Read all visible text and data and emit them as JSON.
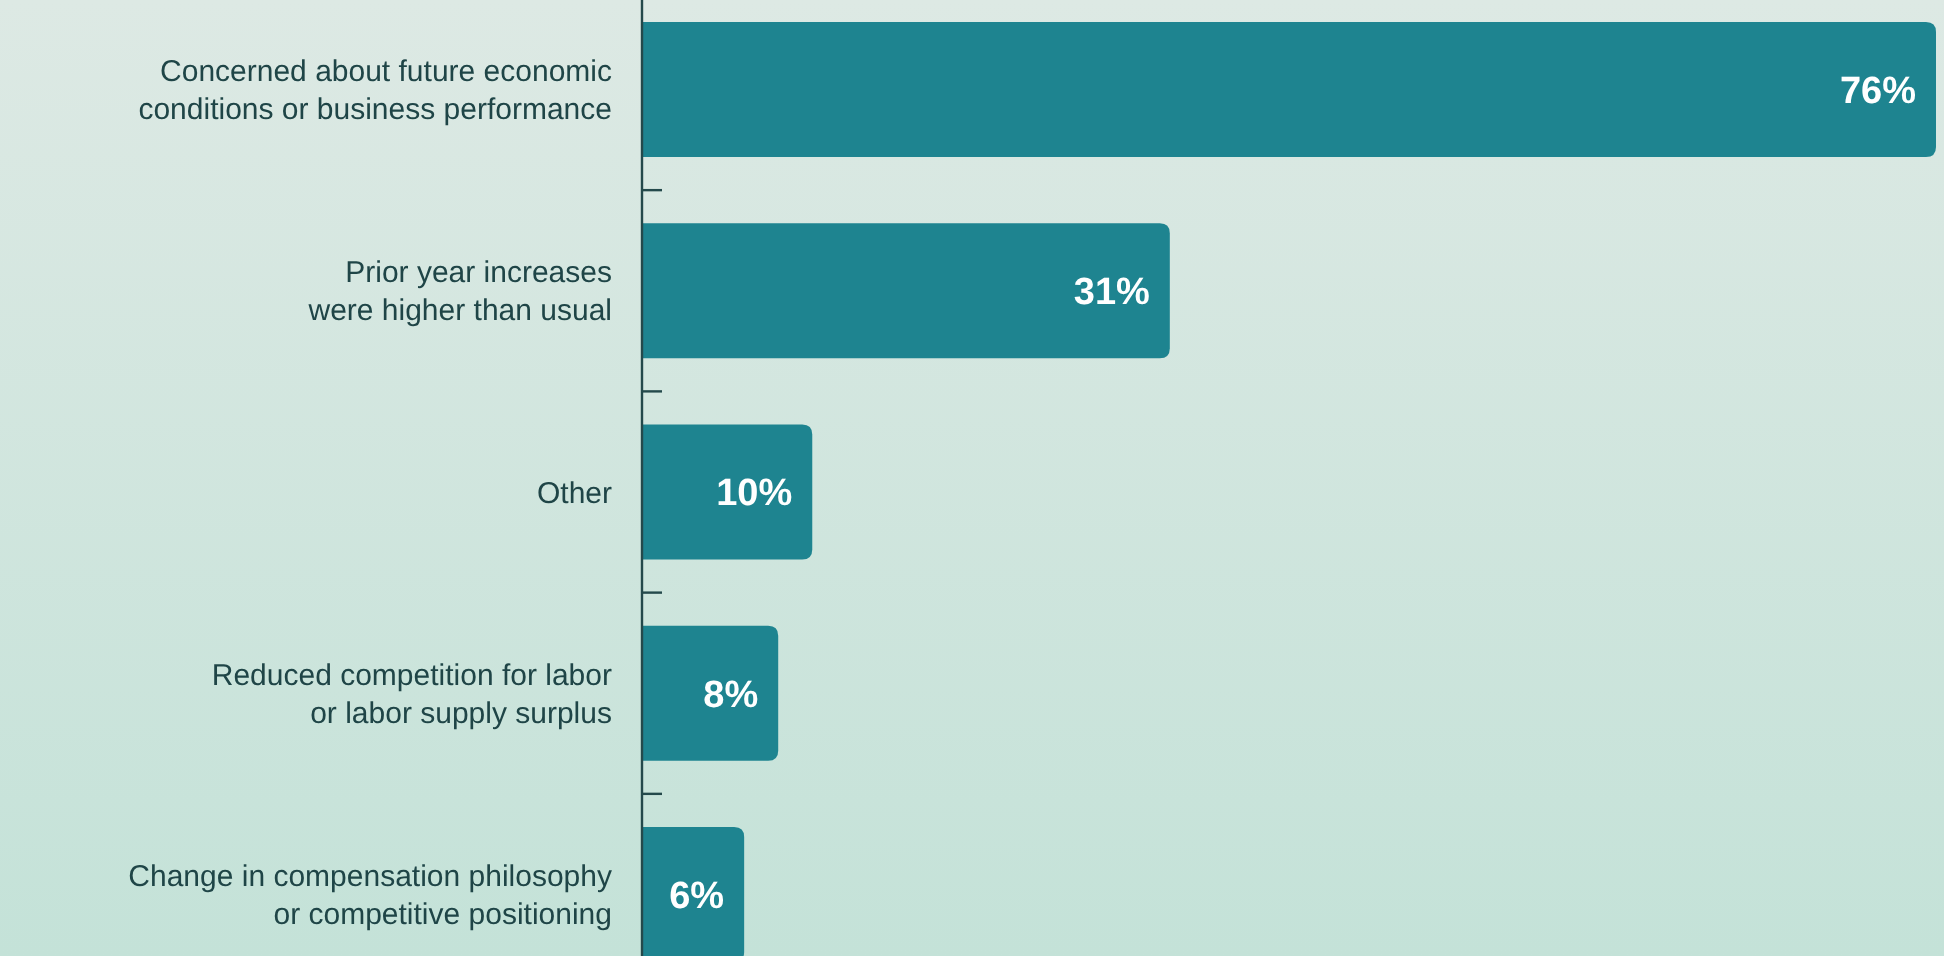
{
  "chart_data": {
    "type": "bar",
    "orientation": "horizontal",
    "categories": [
      "Concerned about future economic\nconditions or business performance",
      "Prior year increases\nwere higher than usual",
      "Other",
      "Reduced competition for labor\nor labor supply surplus",
      "Change in compensation philosophy\nor competitive positioning"
    ],
    "values": [
      76,
      31,
      10,
      8,
      6
    ],
    "value_labels": [
      "76%",
      "31%",
      "10%",
      "8%",
      "6%"
    ],
    "color": "#1e8490"
  }
}
